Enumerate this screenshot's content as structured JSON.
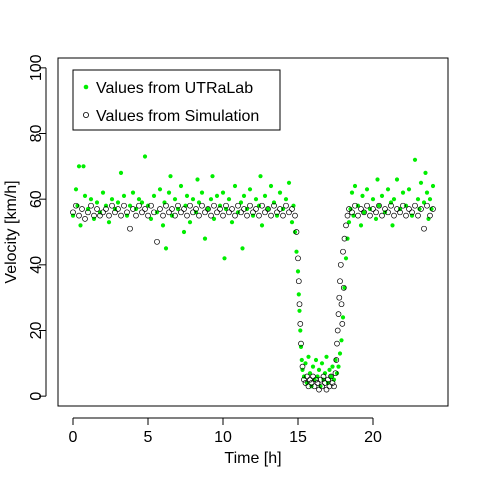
{
  "chart_data": {
    "type": "scatter",
    "xlabel": "Time [h]",
    "ylabel": "Velocity [km/h]",
    "xlim": [
      -1,
      25
    ],
    "ylim": [
      -3,
      103
    ],
    "xticks": [
      0,
      5,
      10,
      15,
      20
    ],
    "yticks": [
      0,
      20,
      40,
      60,
      80,
      100
    ],
    "grid": false,
    "legend_position": "top-left",
    "colors": {
      "lab": "#00ee00",
      "sim": "#000000"
    },
    "series": [
      {
        "name": "Values from UTRaLab",
        "marker": "filled-circle",
        "color": "#00ee00",
        "points": [
          [
            0.0,
            55
          ],
          [
            0.2,
            63
          ],
          [
            0.3,
            58
          ],
          [
            0.4,
            70
          ],
          [
            0.5,
            52
          ],
          [
            0.7,
            70
          ],
          [
            0.8,
            61
          ],
          [
            1.0,
            57
          ],
          [
            1.2,
            60
          ],
          [
            1.4,
            54
          ],
          [
            1.6,
            59
          ],
          [
            1.8,
            56
          ],
          [
            2.0,
            62
          ],
          [
            2.2,
            58
          ],
          [
            2.4,
            53
          ],
          [
            2.6,
            60
          ],
          [
            2.8,
            57
          ],
          [
            3.0,
            59
          ],
          [
            3.2,
            68
          ],
          [
            3.4,
            61
          ],
          [
            3.6,
            55
          ],
          [
            3.8,
            58
          ],
          [
            4.0,
            62
          ],
          [
            4.2,
            57
          ],
          [
            4.4,
            60
          ],
          [
            4.6,
            59
          ],
          [
            4.8,
            73
          ],
          [
            5.0,
            58
          ],
          [
            5.2,
            54
          ],
          [
            5.4,
            61
          ],
          [
            5.6,
            56
          ],
          [
            5.8,
            63
          ],
          [
            6.0,
            52
          ],
          [
            6.1,
            59
          ],
          [
            6.2,
            45
          ],
          [
            6.4,
            62
          ],
          [
            6.5,
            67
          ],
          [
            6.6,
            55
          ],
          [
            6.8,
            60
          ],
          [
            7.0,
            57
          ],
          [
            7.2,
            64
          ],
          [
            7.4,
            50
          ],
          [
            7.5,
            58
          ],
          [
            7.6,
            61
          ],
          [
            7.8,
            53
          ],
          [
            8.0,
            60
          ],
          [
            8.2,
            56
          ],
          [
            8.3,
            66
          ],
          [
            8.4,
            59
          ],
          [
            8.6,
            62
          ],
          [
            8.8,
            48
          ],
          [
            9.0,
            57
          ],
          [
            9.2,
            60
          ],
          [
            9.3,
            67
          ],
          [
            9.4,
            54
          ],
          [
            9.6,
            61
          ],
          [
            9.8,
            58
          ],
          [
            10.0,
            62
          ],
          [
            10.1,
            42
          ],
          [
            10.2,
            57
          ],
          [
            10.4,
            60
          ],
          [
            10.6,
            53
          ],
          [
            10.8,
            64
          ],
          [
            11.0,
            56
          ],
          [
            11.2,
            59
          ],
          [
            11.3,
            45
          ],
          [
            11.4,
            61
          ],
          [
            11.6,
            57
          ],
          [
            11.8,
            63
          ],
          [
            12.0,
            55
          ],
          [
            12.2,
            60
          ],
          [
            12.4,
            58
          ],
          [
            12.5,
            67
          ],
          [
            12.6,
            52
          ],
          [
            12.8,
            61
          ],
          [
            13.0,
            57
          ],
          [
            13.2,
            64
          ],
          [
            13.4,
            59
          ],
          [
            13.6,
            55
          ],
          [
            13.8,
            62
          ],
          [
            14.0,
            57
          ],
          [
            14.2,
            60
          ],
          [
            14.4,
            65
          ],
          [
            14.6,
            53
          ],
          [
            14.7,
            58
          ],
          [
            14.8,
            50
          ],
          [
            14.9,
            44
          ],
          [
            15.0,
            38
          ],
          [
            15.05,
            31
          ],
          [
            15.1,
            26
          ],
          [
            15.15,
            20
          ],
          [
            15.2,
            15
          ],
          [
            15.25,
            11
          ],
          [
            15.3,
            8
          ],
          [
            15.4,
            6
          ],
          [
            15.5,
            10
          ],
          [
            15.6,
            4
          ],
          [
            15.7,
            12
          ],
          [
            15.8,
            7
          ],
          [
            15.9,
            3
          ],
          [
            16.0,
            9
          ],
          [
            16.1,
            5
          ],
          [
            16.2,
            11
          ],
          [
            16.3,
            6
          ],
          [
            16.4,
            8
          ],
          [
            16.5,
            3
          ],
          [
            16.6,
            10
          ],
          [
            16.7,
            5
          ],
          [
            16.8,
            7
          ],
          [
            16.9,
            12
          ],
          [
            17.0,
            4
          ],
          [
            17.1,
            8
          ],
          [
            17.2,
            6
          ],
          [
            17.3,
            9
          ],
          [
            17.4,
            5
          ],
          [
            17.5,
            11
          ],
          [
            17.6,
            7
          ],
          [
            17.7,
            9
          ],
          [
            17.8,
            13
          ],
          [
            17.9,
            17
          ],
          [
            18.0,
            24
          ],
          [
            18.1,
            33
          ],
          [
            18.2,
            42
          ],
          [
            18.3,
            48
          ],
          [
            18.4,
            53
          ],
          [
            18.5,
            57
          ],
          [
            18.6,
            62
          ],
          [
            18.7,
            55
          ],
          [
            18.8,
            64
          ],
          [
            19.0,
            58
          ],
          [
            19.2,
            52
          ],
          [
            19.3,
            61
          ],
          [
            19.4,
            56
          ],
          [
            19.6,
            63
          ],
          [
            19.8,
            57
          ],
          [
            20.0,
            60
          ],
          [
            20.2,
            54
          ],
          [
            20.3,
            66
          ],
          [
            20.4,
            58
          ],
          [
            20.6,
            61
          ],
          [
            20.8,
            56
          ],
          [
            21.0,
            63
          ],
          [
            21.2,
            59
          ],
          [
            21.3,
            52
          ],
          [
            21.4,
            60
          ],
          [
            21.6,
            66
          ],
          [
            21.8,
            57
          ],
          [
            22.0,
            62
          ],
          [
            22.2,
            58
          ],
          [
            22.4,
            63
          ],
          [
            22.6,
            55
          ],
          [
            22.8,
            72
          ],
          [
            23.0,
            60
          ],
          [
            23.1,
            57
          ],
          [
            23.2,
            65
          ],
          [
            23.4,
            59
          ],
          [
            23.5,
            68
          ],
          [
            23.6,
            62
          ],
          [
            23.7,
            54
          ],
          [
            23.8,
            60
          ],
          [
            23.9,
            57
          ],
          [
            24.0,
            64
          ]
        ]
      },
      {
        "name": "Values from Simulation",
        "marker": "open-circle",
        "color": "#000000",
        "points": [
          [
            0.0,
            56
          ],
          [
            0.2,
            58
          ],
          [
            0.4,
            55
          ],
          [
            0.6,
            57
          ],
          [
            0.8,
            54
          ],
          [
            1.0,
            56
          ],
          [
            1.2,
            58
          ],
          [
            1.4,
            55
          ],
          [
            1.6,
            57
          ],
          [
            1.8,
            55
          ],
          [
            2.0,
            56
          ],
          [
            2.2,
            57
          ],
          [
            2.4,
            55
          ],
          [
            2.6,
            58
          ],
          [
            2.8,
            56
          ],
          [
            3.0,
            57
          ],
          [
            3.2,
            55
          ],
          [
            3.4,
            58
          ],
          [
            3.6,
            56
          ],
          [
            3.8,
            51
          ],
          [
            4.0,
            57
          ],
          [
            4.2,
            55
          ],
          [
            4.4,
            58
          ],
          [
            4.6,
            56
          ],
          [
            4.8,
            57
          ],
          [
            5.0,
            55
          ],
          [
            5.2,
            58
          ],
          [
            5.4,
            56
          ],
          [
            5.6,
            47
          ],
          [
            5.8,
            57
          ],
          [
            6.0,
            55
          ],
          [
            6.2,
            58
          ],
          [
            6.4,
            56
          ],
          [
            6.6,
            57
          ],
          [
            6.8,
            55
          ],
          [
            7.0,
            58
          ],
          [
            7.2,
            56
          ],
          [
            7.4,
            57
          ],
          [
            7.6,
            55
          ],
          [
            7.8,
            58
          ],
          [
            8.0,
            56
          ],
          [
            8.2,
            57
          ],
          [
            8.4,
            55
          ],
          [
            8.6,
            58
          ],
          [
            8.8,
            56
          ],
          [
            9.0,
            57
          ],
          [
            9.2,
            55
          ],
          [
            9.4,
            58
          ],
          [
            9.6,
            56
          ],
          [
            9.8,
            57
          ],
          [
            10.0,
            55
          ],
          [
            10.2,
            58
          ],
          [
            10.4,
            56
          ],
          [
            10.6,
            57
          ],
          [
            10.8,
            55
          ],
          [
            11.0,
            58
          ],
          [
            11.2,
            56
          ],
          [
            11.4,
            57
          ],
          [
            11.6,
            55
          ],
          [
            11.8,
            58
          ],
          [
            12.0,
            56
          ],
          [
            12.2,
            57
          ],
          [
            12.4,
            55
          ],
          [
            12.6,
            58
          ],
          [
            12.8,
            56
          ],
          [
            13.0,
            57
          ],
          [
            13.2,
            55
          ],
          [
            13.4,
            58
          ],
          [
            13.6,
            56
          ],
          [
            13.8,
            57
          ],
          [
            14.0,
            55
          ],
          [
            14.2,
            58
          ],
          [
            14.4,
            56
          ],
          [
            14.6,
            57
          ],
          [
            14.8,
            55
          ],
          [
            14.9,
            50
          ],
          [
            15.0,
            42
          ],
          [
            15.05,
            35
          ],
          [
            15.1,
            28
          ],
          [
            15.15,
            22
          ],
          [
            15.2,
            16
          ],
          [
            15.3,
            9
          ],
          [
            15.4,
            5
          ],
          [
            15.5,
            4
          ],
          [
            15.6,
            6
          ],
          [
            15.7,
            3
          ],
          [
            15.8,
            5
          ],
          [
            15.9,
            4
          ],
          [
            16.0,
            6
          ],
          [
            16.1,
            3
          ],
          [
            16.2,
            5
          ],
          [
            16.3,
            4
          ],
          [
            16.4,
            2
          ],
          [
            16.5,
            5
          ],
          [
            16.6,
            3
          ],
          [
            16.7,
            6
          ],
          [
            16.8,
            4
          ],
          [
            16.9,
            2
          ],
          [
            17.0,
            5
          ],
          [
            17.1,
            3
          ],
          [
            17.2,
            6
          ],
          [
            17.3,
            4
          ],
          [
            17.4,
            3
          ],
          [
            17.5,
            7
          ],
          [
            17.55,
            11
          ],
          [
            17.6,
            16
          ],
          [
            17.65,
            20
          ],
          [
            17.7,
            25
          ],
          [
            17.75,
            30
          ],
          [
            17.8,
            35
          ],
          [
            17.85,
            40
          ],
          [
            17.9,
            28
          ],
          [
            17.95,
            22
          ],
          [
            18.0,
            44
          ],
          [
            18.05,
            33
          ],
          [
            18.1,
            48
          ],
          [
            18.2,
            52
          ],
          [
            18.3,
            55
          ],
          [
            18.4,
            57
          ],
          [
            18.6,
            56
          ],
          [
            18.8,
            58
          ],
          [
            19.0,
            55
          ],
          [
            19.2,
            57
          ],
          [
            19.4,
            56
          ],
          [
            19.6,
            58
          ],
          [
            19.8,
            55
          ],
          [
            20.0,
            57
          ],
          [
            20.2,
            56
          ],
          [
            20.4,
            58
          ],
          [
            20.6,
            55
          ],
          [
            20.8,
            57
          ],
          [
            21.0,
            56
          ],
          [
            21.2,
            58
          ],
          [
            21.4,
            55
          ],
          [
            21.6,
            57
          ],
          [
            21.8,
            56
          ],
          [
            22.0,
            58
          ],
          [
            22.2,
            55
          ],
          [
            22.4,
            57
          ],
          [
            22.6,
            56
          ],
          [
            22.8,
            58
          ],
          [
            23.0,
            55
          ],
          [
            23.2,
            57
          ],
          [
            23.4,
            51
          ],
          [
            23.6,
            58
          ],
          [
            23.8,
            55
          ],
          [
            24.0,
            57
          ]
        ]
      }
    ]
  }
}
